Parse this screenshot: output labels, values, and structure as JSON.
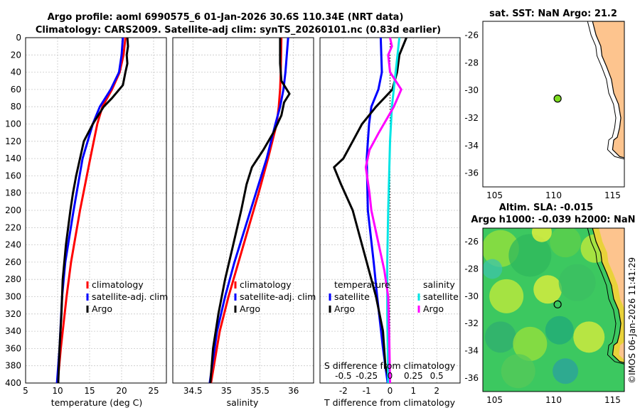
{
  "titles": {
    "line1": "Argo profile: aoml 6990575_6 01-Jan-2026 30.6S 110.34E (NRT data)",
    "line2": "Climatology: CARS2009. Satellite-adj clim: synTS_20260101.nc (0.83d earlier)"
  },
  "colors": {
    "clim": "#ff0000",
    "sat": "#0000ff",
    "argo": "#000000",
    "sal_sat": "#00e5e5",
    "sal_argo": "#ff00ff",
    "land": "#fdc48e",
    "sea": "#ffffff"
  },
  "chart_data": [
    {
      "type": "line",
      "name": "temperature",
      "xlabel": "temperature (deg C)",
      "ylabel": "depth",
      "xlim": [
        5,
        27
      ],
      "ylim": [
        400,
        0
      ],
      "x_ticks": [
        "5",
        "10",
        "15",
        "20",
        "25"
      ],
      "y_ticks": [
        "0",
        "20",
        "40",
        "60",
        "80",
        "100",
        "120",
        "140",
        "160",
        "180",
        "200",
        "220",
        "240",
        "260",
        "280",
        "300",
        "320",
        "340",
        "360",
        "380",
        "400"
      ],
      "legend": [
        "climatology",
        "satellite-adj. clim",
        "Argo"
      ],
      "series": [
        {
          "name": "climatology",
          "color": "#ff0000",
          "depth": [
            0,
            20,
            40,
            60,
            80,
            100,
            140,
            200,
            260,
            300,
            360,
            400
          ],
          "values": [
            20.6,
            20.3,
            19.7,
            18.5,
            17.0,
            16.2,
            15.1,
            13.5,
            12.1,
            11.4,
            10.5,
            10.0
          ]
        },
        {
          "name": "satellite-adj. clim",
          "color": "#0000ff",
          "depth": [
            0,
            20,
            40,
            60,
            80,
            100,
            140,
            200,
            260,
            300,
            360,
            400
          ],
          "values": [
            20.2,
            20.0,
            19.6,
            18.3,
            16.6,
            15.5,
            13.9,
            12.5,
            11.2,
            10.7,
            10.3,
            9.9
          ]
        },
        {
          "name": "Argo",
          "color": "#000000",
          "depth": [
            0,
            10,
            20,
            30,
            40,
            55,
            70,
            80,
            100,
            120,
            140,
            160,
            180,
            200,
            240,
            280,
            320,
            360,
            400
          ],
          "values": [
            20.9,
            21.0,
            20.8,
            20.9,
            20.6,
            20.2,
            18.5,
            17.2,
            15.5,
            14.1,
            13.5,
            12.9,
            12.4,
            12.0,
            11.3,
            10.8,
            10.6,
            10.3,
            10.1
          ]
        }
      ]
    },
    {
      "type": "line",
      "name": "salinity",
      "xlabel": "salinity",
      "xlim": [
        34.2,
        36.3
      ],
      "ylim": [
        400,
        0
      ],
      "x_ticks": [
        "34.5",
        "35",
        "35.5",
        "36"
      ],
      "legend": [
        "climatology",
        "satellite-adj. clim",
        "Argo"
      ],
      "series": [
        {
          "name": "climatology",
          "color": "#ff0000",
          "depth": [
            0,
            40,
            60,
            80,
            100,
            140,
            180,
            220,
            260,
            300,
            340,
            400
          ],
          "values": [
            35.82,
            35.81,
            35.8,
            35.78,
            35.75,
            35.62,
            35.48,
            35.33,
            35.18,
            35.03,
            34.9,
            34.77
          ]
        },
        {
          "name": "satellite-adj. clim",
          "color": "#0000ff",
          "depth": [
            0,
            40,
            60,
            80,
            100,
            140,
            180,
            220,
            260,
            300,
            340,
            400
          ],
          "values": [
            35.92,
            35.88,
            35.85,
            35.8,
            35.73,
            35.6,
            35.44,
            35.28,
            35.12,
            34.98,
            34.86,
            34.75
          ]
        },
        {
          "name": "Argo",
          "color": "#000000",
          "depth": [
            0,
            30,
            50,
            65,
            75,
            90,
            110,
            130,
            150,
            170,
            200,
            240,
            280,
            320,
            360,
            400
          ],
          "values": [
            35.8,
            35.8,
            35.82,
            35.94,
            35.86,
            35.82,
            35.7,
            35.55,
            35.38,
            35.3,
            35.22,
            35.1,
            34.98,
            34.88,
            34.8,
            34.76
          ]
        }
      ]
    },
    {
      "type": "line",
      "name": "difference from climatology",
      "xlabel": "T difference from climatology",
      "xlabel2": "S difference from climatology",
      "xlim": [
        -3,
        3
      ],
      "ylim": [
        400,
        0
      ],
      "x_ticks": [
        "-2",
        "-1",
        "0",
        "1",
        "2"
      ],
      "x2_ticks": [
        "-0.5",
        "-0.25",
        "0",
        "0.25",
        "0.5"
      ],
      "legend_t": [
        "temperature",
        "satellite",
        "Argo"
      ],
      "legend_s": [
        "salinity",
        "satellite",
        "Argo"
      ],
      "series": [
        {
          "name": "T satellite",
          "color": "#0000ff",
          "depth": [
            0,
            40,
            60,
            80,
            100,
            140,
            200,
            260,
            300,
            360,
            400
          ],
          "values": [
            -0.4,
            -0.35,
            -0.5,
            -0.8,
            -0.9,
            -1.0,
            -0.95,
            -0.7,
            -0.55,
            -0.3,
            -0.1
          ]
        },
        {
          "name": "T Argo",
          "color": "#000000",
          "depth": [
            0,
            20,
            40,
            60,
            80,
            100,
            120,
            140,
            150,
            170,
            200,
            230,
            260,
            300,
            340,
            380,
            400
          ],
          "values": [
            0.7,
            0.4,
            0.3,
            0.1,
            -0.6,
            -1.2,
            -1.6,
            -2.0,
            -2.4,
            -2.1,
            -1.6,
            -1.3,
            -1.0,
            -0.6,
            -0.3,
            -0.2,
            0.0
          ]
        },
        {
          "name": "S satellite",
          "color": "#00e5e5",
          "depth": [
            0,
            40,
            80,
            120,
            160,
            200,
            260,
            320,
            400
          ],
          "values": [
            0.1,
            0.06,
            0.02,
            0.0,
            -0.01,
            -0.02,
            -0.03,
            -0.03,
            -0.02
          ]
        },
        {
          "name": "S Argo",
          "color": "#ff00ff",
          "depth": [
            0,
            10,
            20,
            40,
            60,
            80,
            110,
            130,
            150,
            180,
            200,
            240,
            270,
            300,
            340,
            400
          ],
          "values": [
            0.0,
            0.02,
            -0.02,
            0.0,
            0.12,
            0.04,
            -0.12,
            -0.22,
            -0.26,
            -0.22,
            -0.2,
            -0.12,
            -0.06,
            -0.02,
            -0.01,
            0.0
          ]
        }
      ]
    },
    {
      "type": "map",
      "name": "SST",
      "title": "sat. SST: NaN Argo: 21.2",
      "lon_range": [
        104,
        116
      ],
      "lat_range": [
        -37,
        -25
      ],
      "x_ticks": [
        "105",
        "110",
        "115"
      ],
      "y_ticks": [
        "-26",
        "-28",
        "-30",
        "-32",
        "-34",
        "-36"
      ],
      "float_position": {
        "lon": 110.34,
        "lat": -30.6
      }
    },
    {
      "type": "map",
      "name": "SLA",
      "title1": "Altim. SLA: -0.015",
      "title2": "Argo h1000: -0.039 h2000: NaN",
      "lon_range": [
        104,
        116
      ],
      "lat_range": [
        -37,
        -25
      ],
      "x_ticks": [
        "105",
        "110",
        "115"
      ],
      "y_ticks": [
        "-26",
        "-28",
        "-30",
        "-32",
        "-34",
        "-36"
      ],
      "float_position": {
        "lon": 110.34,
        "lat": -30.6
      }
    }
  ],
  "credit": "©IMOS 06-Jan-2026 11:41:29"
}
